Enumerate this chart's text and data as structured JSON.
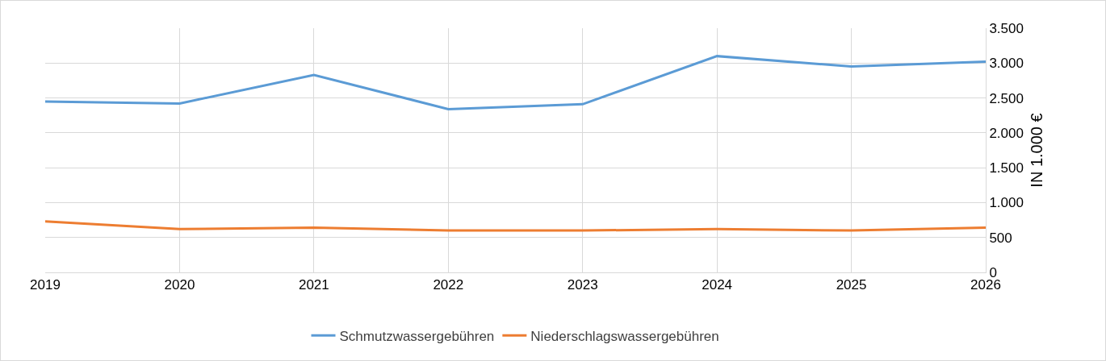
{
  "chart_data": {
    "type": "line",
    "ylabel": "IN 1.000 €",
    "x": [
      2019,
      2020,
      2021,
      2022,
      2023,
      2024,
      2025,
      2026
    ],
    "series": [
      {
        "name": "Schmutzwassergebühren",
        "color": "#5b9bd5",
        "values": [
          2450,
          2420,
          2830,
          2340,
          2410,
          3100,
          2950,
          3020
        ]
      },
      {
        "name": "Niederschlagswassergebühren",
        "color": "#ed7d31",
        "values": [
          730,
          620,
          640,
          600,
          600,
          620,
          600,
          640
        ]
      }
    ],
    "xlim": [
      2019,
      2026
    ],
    "xticks": [
      2019,
      2020,
      2021,
      2022,
      2023,
      2024,
      2025,
      2026
    ],
    "ylim": [
      0,
      3500
    ],
    "yticks": [
      0,
      500,
      {
        "value": 1000,
        "label": "1.000"
      },
      {
        "value": 1500,
        "label": "1.500"
      },
      {
        "value": 2000,
        "label": "2.000"
      },
      {
        "value": 2500,
        "label": "2.500"
      },
      {
        "value": 3000,
        "label": "3.000"
      },
      {
        "value": 3500,
        "label": "3.500"
      }
    ],
    "grid": true,
    "legend": "bottom",
    "marker": "none",
    "line_style": "solid"
  }
}
